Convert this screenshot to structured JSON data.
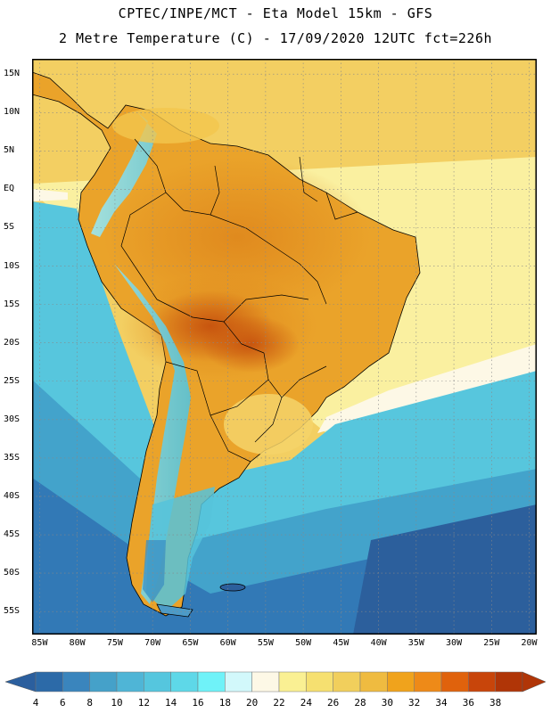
{
  "title": {
    "line1": "CPTEC/INPE/MCT -  Eta Model 15km - GFS",
    "line2": "2 Metre Temperature (C) - 17/09/2020 12UTC fct=226h"
  },
  "axes": {
    "lat_labels": [
      "15N",
      "10N",
      "5N",
      "EQ",
      "5S",
      "10S",
      "15S",
      "20S",
      "25S",
      "30S",
      "35S",
      "40S",
      "45S",
      "50S",
      "55S"
    ],
    "lat_values": [
      15,
      10,
      5,
      0,
      -5,
      -10,
      -15,
      -20,
      -25,
      -30,
      -35,
      -40,
      -45,
      -50,
      -55
    ],
    "lon_labels": [
      "85W",
      "80W",
      "75W",
      "70W",
      "65W",
      "60W",
      "55W",
      "50W",
      "45W",
      "40W",
      "35W",
      "30W",
      "25W",
      "20W"
    ],
    "lon_values": [
      -85,
      -80,
      -75,
      -70,
      -65,
      -60,
      -55,
      -50,
      -45,
      -40,
      -35,
      -30,
      -25,
      -20
    ],
    "lat_range": [
      -58,
      17
    ],
    "lon_range": [
      -86,
      -19
    ],
    "grid": "dotted"
  },
  "colorbar": {
    "labels": [
      "4",
      "6",
      "8",
      "10",
      "12",
      "14",
      "16",
      "18",
      "20",
      "22",
      "24",
      "26",
      "28",
      "30",
      "32",
      "34",
      "36",
      "38"
    ],
    "colors": [
      "#2c6aa8",
      "#3a85bd",
      "#45a1c9",
      "#4fb5d6",
      "#55c6de",
      "#5ed8e8",
      "#6ff2f8",
      "#d2f8fb",
      "#fdf8e6",
      "#faf093",
      "#f6e070",
      "#f1cf5c",
      "#efbb40",
      "#f0a31c",
      "#ee8a18",
      "#e0620c",
      "#c8450a",
      "#b03507"
    ],
    "low_color": "#2b5f9e",
    "high_color": "#b03507"
  }
}
